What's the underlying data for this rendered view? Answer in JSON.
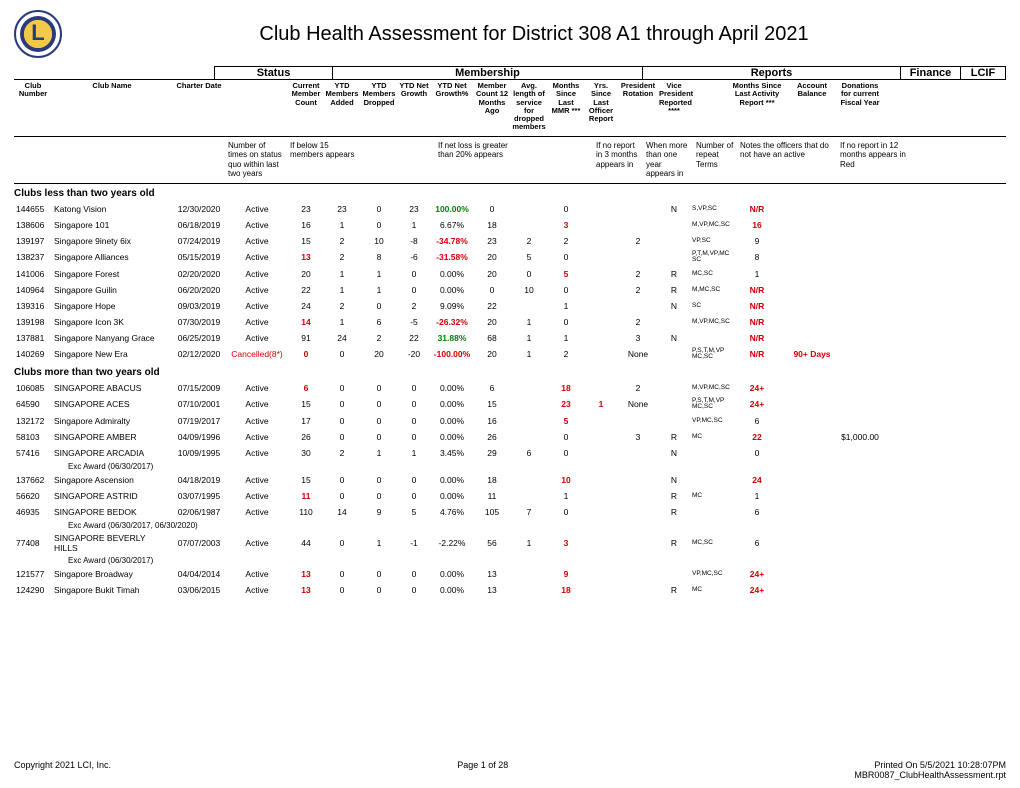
{
  "title": "Club Health Assessment for District 308 A1 through April 2021",
  "groups": {
    "status": "Status",
    "membership": "Membership",
    "reports": "Reports",
    "finance": "Finance",
    "lcif": "LCIF"
  },
  "cols": {
    "clubnum": "Club Number",
    "clubname": "Club Name",
    "charter": "Charter Date",
    "count": "Current Member Count",
    "added": "YTD Members Added",
    "dropped": "YTD Members Dropped",
    "netg": "YTD Net Growth",
    "netgp": "YTD Net Growth%",
    "c12": "Member Count 12 Months Ago",
    "avglen": "Avg. length of service for dropped members",
    "mmr": "Months Since Last MMR ***",
    "yrsoff": "Yrs. Since Last Officer Report",
    "presrot": "President Rotation",
    "vprep": "Vice President Reported ****",
    "actrep": "Months Since Last Activity Report ***",
    "acct": "Account Balance",
    "lcif": "Donations for current Fiscal Year"
  },
  "notes": {
    "status": "Number of times on status quo within last two years",
    "count": "If below 15 members appears",
    "netloss": "If net loss is greater than 20% appears",
    "mmr": "If no report in 3 months appears in",
    "yrs": "When more than one year appears in",
    "pres": "Number of repeat Terms",
    "vp": "Notes the officers that do not have an active",
    "act": "If no report in 12 months appears in Red"
  },
  "colors": {
    "red": "#cc0000",
    "green": "#008000"
  },
  "section1": "Clubs less than two years old",
  "section2": "Clubs more than two years old",
  "rows1": [
    {
      "n": "144655",
      "name": "Katong Vision",
      "d": "12/30/2020",
      "s": "Active",
      "v": [
        "23",
        "23",
        "0",
        "23",
        "100.00%",
        "0",
        "",
        "0",
        "",
        "",
        "N",
        "S,VP,SC",
        "N/R",
        "",
        ""
      ],
      "flags": {
        "4": "green",
        "12": "red"
      }
    },
    {
      "n": "138606",
      "name": "Singapore 101",
      "d": "06/18/2019",
      "s": "Active",
      "v": [
        "16",
        "1",
        "0",
        "1",
        "6.67%",
        "18",
        "",
        "3",
        "",
        "",
        "",
        "M,VP,MC,SC",
        "16",
        "",
        ""
      ],
      "flags": {
        "7": "red",
        "12": "red"
      }
    },
    {
      "n": "139197",
      "name": "Singapore 9inety 6ix",
      "d": "07/24/2019",
      "s": "Active",
      "v": [
        "15",
        "2",
        "10",
        "-8",
        "-34.78%",
        "23",
        "2",
        "2",
        "",
        "2",
        "",
        "VP,SC",
        "9",
        "",
        ""
      ],
      "flags": {
        "4": "red"
      }
    },
    {
      "n": "138237",
      "name": "Singapore Alliances",
      "d": "05/15/2019",
      "s": "Active",
      "v": [
        "13",
        "2",
        "8",
        "-6",
        "-31.58%",
        "20",
        "5",
        "0",
        "",
        "",
        "",
        "P,T,M,VP,MC SC",
        "8",
        "",
        ""
      ],
      "flags": {
        "0": "red",
        "4": "red"
      }
    },
    {
      "n": "141006",
      "name": "Singapore Forest",
      "d": "02/20/2020",
      "s": "Active",
      "v": [
        "20",
        "1",
        "1",
        "0",
        "0.00%",
        "20",
        "0",
        "5",
        "",
        "2",
        "R",
        "MC,SC",
        "1",
        "",
        ""
      ],
      "flags": {
        "7": "red"
      }
    },
    {
      "n": "140964",
      "name": "Singapore Guilin",
      "d": "06/20/2020",
      "s": "Active",
      "v": [
        "22",
        "1",
        "1",
        "0",
        "0.00%",
        "0",
        "10",
        "0",
        "",
        "2",
        "R",
        "M,MC,SC",
        "N/R",
        "",
        ""
      ],
      "flags": {
        "12": "red"
      }
    },
    {
      "n": "139316",
      "name": "Singapore Hope",
      "d": "09/03/2019",
      "s": "Active",
      "v": [
        "24",
        "2",
        "0",
        "2",
        "9.09%",
        "22",
        "",
        "1",
        "",
        "",
        "N",
        "SC",
        "N/R",
        "",
        ""
      ],
      "flags": {
        "12": "red"
      }
    },
    {
      "n": "139198",
      "name": "Singapore Icon 3K",
      "d": "07/30/2019",
      "s": "Active",
      "v": [
        "14",
        "1",
        "6",
        "-5",
        "-26.32%",
        "20",
        "1",
        "0",
        "",
        "2",
        "",
        "M,VP,MC,SC",
        "N/R",
        "",
        ""
      ],
      "flags": {
        "0": "red",
        "4": "red",
        "12": "red"
      }
    },
    {
      "n": "137881",
      "name": "Singapore Nanyang Grace",
      "d": "06/25/2019",
      "s": "Active",
      "v": [
        "91",
        "24",
        "2",
        "22",
        "31.88%",
        "68",
        "1",
        "1",
        "",
        "3",
        "N",
        "",
        "N/R",
        "",
        ""
      ],
      "flags": {
        "4": "green",
        "12": "red"
      }
    },
    {
      "n": "140269",
      "name": "Singapore New Era",
      "d": "02/12/2020",
      "s": "Cancelled(8*)",
      "sred": true,
      "v": [
        "0",
        "0",
        "20",
        "-20",
        "-100.00%",
        "20",
        "1",
        "2",
        "",
        "None",
        "",
        "P,S,T,M,VP MC,SC",
        "N/R",
        "90+ Days",
        ""
      ],
      "flags": {
        "0": "red",
        "4": "red",
        "12": "red",
        "13": "red"
      }
    }
  ],
  "rows2": [
    {
      "n": "106085",
      "name": "SINGAPORE ABACUS",
      "d": "07/15/2009",
      "s": "Active",
      "v": [
        "6",
        "0",
        "0",
        "0",
        "0.00%",
        "6",
        "",
        "18",
        "",
        "2",
        "",
        "M,VP,MC,SC",
        "24+",
        "",
        ""
      ],
      "flags": {
        "0": "red",
        "7": "red",
        "12": "red"
      }
    },
    {
      "n": "64590",
      "name": "SINGAPORE ACES",
      "d": "07/10/2001",
      "s": "Active",
      "v": [
        "15",
        "0",
        "0",
        "0",
        "0.00%",
        "15",
        "",
        "23",
        "1",
        "None",
        "",
        "P,S,T,M,VP MC,SC",
        "24+",
        "",
        ""
      ],
      "flags": {
        "7": "red",
        "8": "red",
        "12": "red"
      }
    },
    {
      "n": "132172",
      "name": "Singapore Admiralty",
      "d": "07/19/2017",
      "s": "Active",
      "v": [
        "17",
        "0",
        "0",
        "0",
        "0.00%",
        "16",
        "",
        "5",
        "",
        "",
        "",
        "VP,MC,SC",
        "6",
        "",
        ""
      ],
      "flags": {
        "7": "red"
      }
    },
    {
      "n": "58103",
      "name": "SINGAPORE AMBER",
      "d": "04/09/1996",
      "s": "Active",
      "v": [
        "26",
        "0",
        "0",
        "0",
        "0.00%",
        "26",
        "",
        "0",
        "",
        "3",
        "R",
        "MC",
        "22",
        "",
        "$1,000.00"
      ],
      "flags": {
        "12": "red"
      }
    },
    {
      "n": "57416",
      "name": "SINGAPORE ARCADIA",
      "d": "10/09/1995",
      "s": "Active",
      "v": [
        "30",
        "2",
        "1",
        "1",
        "3.45%",
        "29",
        "6",
        "0",
        "",
        "",
        "N",
        "",
        "0",
        "",
        ""
      ],
      "exc": "Exc Award (06/30/2017)"
    },
    {
      "n": "137662",
      "name": "Singapore Ascension",
      "d": "04/18/2019",
      "s": "Active",
      "v": [
        "15",
        "0",
        "0",
        "0",
        "0.00%",
        "18",
        "",
        "10",
        "",
        "",
        "N",
        "",
        "24",
        "",
        ""
      ],
      "flags": {
        "7": "red",
        "12": "red"
      }
    },
    {
      "n": "56620",
      "name": "SINGAPORE ASTRID",
      "d": "03/07/1995",
      "s": "Active",
      "v": [
        "11",
        "0",
        "0",
        "0",
        "0.00%",
        "11",
        "",
        "1",
        "",
        "",
        "R",
        "MC",
        "1",
        "",
        ""
      ],
      "flags": {
        "0": "red"
      }
    },
    {
      "n": "46935",
      "name": "SINGAPORE BEDOK",
      "d": "02/06/1987",
      "s": "Active",
      "v": [
        "110",
        "14",
        "9",
        "5",
        "4.76%",
        "105",
        "7",
        "0",
        "",
        "",
        "R",
        "",
        "6",
        "",
        ""
      ],
      "exc": "Exc Award (06/30/2017, 06/30/2020)"
    },
    {
      "n": "77408",
      "name": "SINGAPORE BEVERLY HILLS",
      "d": "07/07/2003",
      "s": "Active",
      "v": [
        "44",
        "0",
        "1",
        "-1",
        "-2.22%",
        "56",
        "1",
        "3",
        "",
        "",
        "R",
        "MC,SC",
        "6",
        "",
        ""
      ],
      "flags": {
        "7": "red"
      },
      "exc": "Exc Award (06/30/2017)"
    },
    {
      "n": "121577",
      "name": "Singapore Broadway",
      "d": "04/04/2014",
      "s": "Active",
      "v": [
        "13",
        "0",
        "0",
        "0",
        "0.00%",
        "13",
        "",
        "9",
        "",
        "",
        "",
        "VP,MC,SC",
        "24+",
        "",
        ""
      ],
      "flags": {
        "0": "red",
        "7": "red",
        "12": "red"
      }
    },
    {
      "n": "124290",
      "name": "Singapore Bukit Timah",
      "d": "03/06/2015",
      "s": "Active",
      "v": [
        "13",
        "0",
        "0",
        "0",
        "0.00%",
        "13",
        "",
        "18",
        "",
        "",
        "R",
        "MC",
        "24+",
        "",
        ""
      ],
      "flags": {
        "0": "red",
        "7": "red",
        "12": "red"
      }
    }
  ],
  "footer": {
    "copy": "Copyright 2021 LCI, Inc.",
    "page": "Page 1 of 28",
    "printed": "Printed On  5/5/2021  10:28:07PM",
    "rpt": "MBR0087_ClubHealthAssessment.rpt"
  }
}
